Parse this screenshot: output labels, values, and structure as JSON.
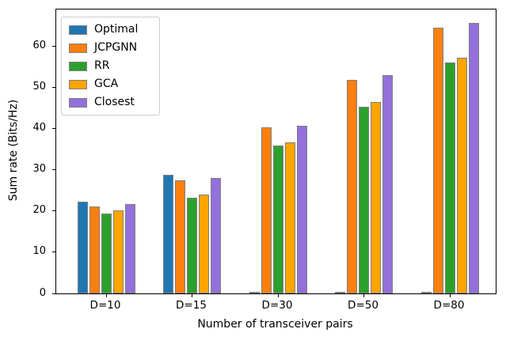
{
  "chart_data": {
    "type": "bar",
    "title": "",
    "xlabel": "Number of transceiver pairs",
    "ylabel": "Sum rate (Bits/Hz)",
    "categories": [
      "D=10",
      "D=15",
      "D=30",
      "D=50",
      "D=80"
    ],
    "series": [
      {
        "name": "Optimal",
        "color": "#1f77b4",
        "values": [
          22.3,
          28.9,
          0,
          0,
          0
        ]
      },
      {
        "name": "JCPGNN",
        "color": "#ff7f0e",
        "values": [
          21.2,
          27.5,
          40.3,
          51.9,
          64.5
        ]
      },
      {
        "name": "RR",
        "color": "#2ca02c",
        "values": [
          19.5,
          23.2,
          36.0,
          45.4,
          56.1
        ]
      },
      {
        "name": "GCA",
        "color": "#ffa500",
        "values": [
          20.2,
          24.0,
          36.7,
          46.5,
          57.2
        ]
      },
      {
        "name": "Closest",
        "color": "#9370db",
        "values": [
          21.8,
          28.0,
          40.8,
          53.1,
          65.7
        ]
      }
    ],
    "bar_edge_color": "#7f7f7f",
    "yticks": [
      0,
      10,
      20,
      30,
      40,
      50,
      60
    ],
    "ylim": [
      0,
      69
    ],
    "legend_position": "upper left",
    "grid": false,
    "note_zero_bars": "Optimal series shows ~0 value (flat gray dash) at D=30, D=50, D=80"
  }
}
